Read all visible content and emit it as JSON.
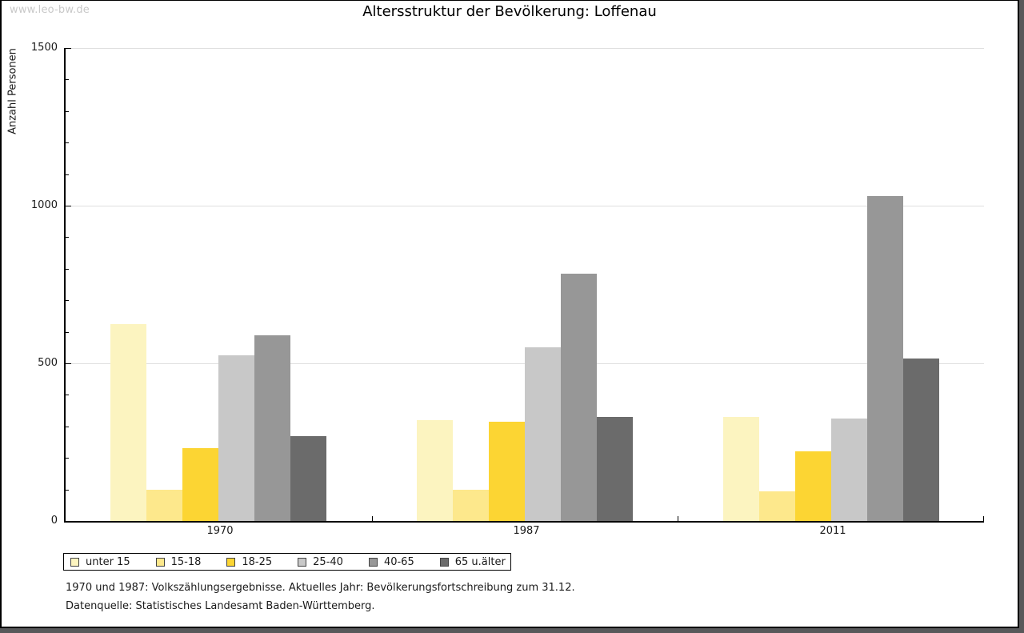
{
  "watermark": "www.leo-bw.de",
  "title": "Altersstruktur der Bevölkerung: Loffenau",
  "chart_data": {
    "type": "bar",
    "title": "Altersstruktur der Bevölkerung: Loffenau",
    "xlabel": "",
    "ylabel": "Anzahl Personen",
    "categories": [
      "1970",
      "1987",
      "2011"
    ],
    "series": [
      {
        "name": "unter 15",
        "color": "#FCF4C0",
        "values": [
          625,
          320,
          330
        ]
      },
      {
        "name": "15-18",
        "color": "#FDE88C",
        "values": [
          100,
          100,
          95
        ]
      },
      {
        "name": "18-25",
        "color": "#FCD533",
        "values": [
          230,
          315,
          220
        ]
      },
      {
        "name": "25-40",
        "color": "#C8C8C8",
        "values": [
          525,
          550,
          325
        ]
      },
      {
        "name": "40-65",
        "color": "#979797",
        "values": [
          590,
          785,
          1030
        ]
      },
      {
        "name": "65 u.älter",
        "color": "#6B6B6B",
        "values": [
          270,
          330,
          515
        ]
      }
    ],
    "ylim": [
      0,
      1500
    ],
    "yticks": [
      0,
      500,
      1000,
      1500
    ],
    "minor_tick_step": 100,
    "grid": true,
    "legend_position": "bottom",
    "gridline_color": "#DFDFDF",
    "frame_shadow_color": "#58585A"
  },
  "footnotes": [
    "1970 und 1987: Volkszählungsergebnisse. Aktuelles Jahr: Bevölkerungsfortschreibung zum 31.12.",
    "Datenquelle: Statistisches Landesamt Baden-Württemberg."
  ]
}
